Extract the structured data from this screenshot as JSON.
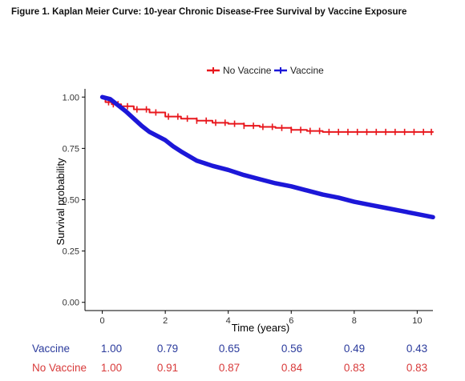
{
  "figure_title": "Figure 1. Kaplan Meier Curve: 10-year Chronic Disease-Free Survival by Vaccine Exposure",
  "chart_data": {
    "type": "line",
    "title": "",
    "xlabel": "Time (years)",
    "ylabel": "Survival probability",
    "xlim": [
      -0.55,
      10.5
    ],
    "ylim": [
      -0.04,
      1.04
    ],
    "xticks": [
      0,
      2,
      4,
      6,
      8,
      10
    ],
    "xtick_labels": [
      "0",
      "2",
      "4",
      "6",
      "8",
      "10"
    ],
    "yticks": [
      0.0,
      0.25,
      0.5,
      0.75,
      1.0
    ],
    "ytick_labels": [
      "0.00",
      "0.25",
      "0.50",
      "0.75",
      "1.00"
    ],
    "grid": false,
    "legend_position": "top",
    "legend": [
      {
        "name": "No Vaccine",
        "color": "#e8171d"
      },
      {
        "name": "Vaccine",
        "color": "#1c17d8"
      }
    ],
    "series": [
      {
        "name": "No Vaccine",
        "color": "#e8171d",
        "step": true,
        "x": [
          0,
          0.1,
          0.3,
          0.6,
          1.0,
          1.5,
          2.0,
          2.5,
          3.0,
          3.5,
          4.0,
          4.5,
          5.0,
          5.5,
          6.0,
          6.5,
          7.0,
          7.5,
          8.0,
          8.5,
          9.0,
          9.5,
          10.0,
          10.5
        ],
        "y": [
          1.0,
          0.975,
          0.965,
          0.955,
          0.94,
          0.925,
          0.905,
          0.895,
          0.885,
          0.875,
          0.87,
          0.86,
          0.855,
          0.85,
          0.84,
          0.835,
          0.83,
          0.83,
          0.83,
          0.83,
          0.83,
          0.83,
          0.83,
          0.83
        ],
        "censor_x": [
          0.2,
          0.35,
          0.5,
          0.8,
          1.1,
          1.4,
          1.7,
          2.1,
          2.4,
          2.7,
          3.0,
          3.3,
          3.6,
          3.9,
          4.2,
          4.5,
          4.8,
          5.1,
          5.4,
          5.7,
          6.0,
          6.3,
          6.6,
          6.9,
          7.2,
          7.5,
          7.8,
          8.1,
          8.4,
          8.7,
          9.0,
          9.3,
          9.6,
          9.9,
          10.2,
          10.45
        ]
      },
      {
        "name": "Vaccine",
        "color": "#1c17d8",
        "step": false,
        "x": [
          0,
          0.25,
          0.5,
          0.75,
          1.0,
          1.25,
          1.5,
          1.75,
          2.0,
          2.25,
          2.5,
          3.0,
          3.5,
          4.0,
          4.5,
          5.0,
          5.5,
          6.0,
          6.5,
          7.0,
          7.5,
          8.0,
          8.5,
          9.0,
          9.5,
          10.0,
          10.5
        ],
        "y": [
          1.0,
          0.99,
          0.96,
          0.93,
          0.895,
          0.86,
          0.83,
          0.81,
          0.79,
          0.76,
          0.735,
          0.69,
          0.665,
          0.645,
          0.62,
          0.6,
          0.58,
          0.565,
          0.545,
          0.525,
          0.51,
          0.49,
          0.475,
          0.46,
          0.445,
          0.43,
          0.415
        ]
      }
    ]
  },
  "risk_table": {
    "columns": [
      0,
      2,
      4,
      6,
      8,
      10
    ],
    "rows": [
      {
        "label": "Vaccine",
        "color": "#2b3b9c",
        "values": [
          "1.00",
          "0.79",
          "0.65",
          "0.56",
          "0.49",
          "0.43"
        ]
      },
      {
        "label": "No Vaccine",
        "color": "#d83a3a",
        "values": [
          "1.00",
          "0.91",
          "0.87",
          "0.84",
          "0.83",
          "0.83"
        ]
      }
    ]
  }
}
